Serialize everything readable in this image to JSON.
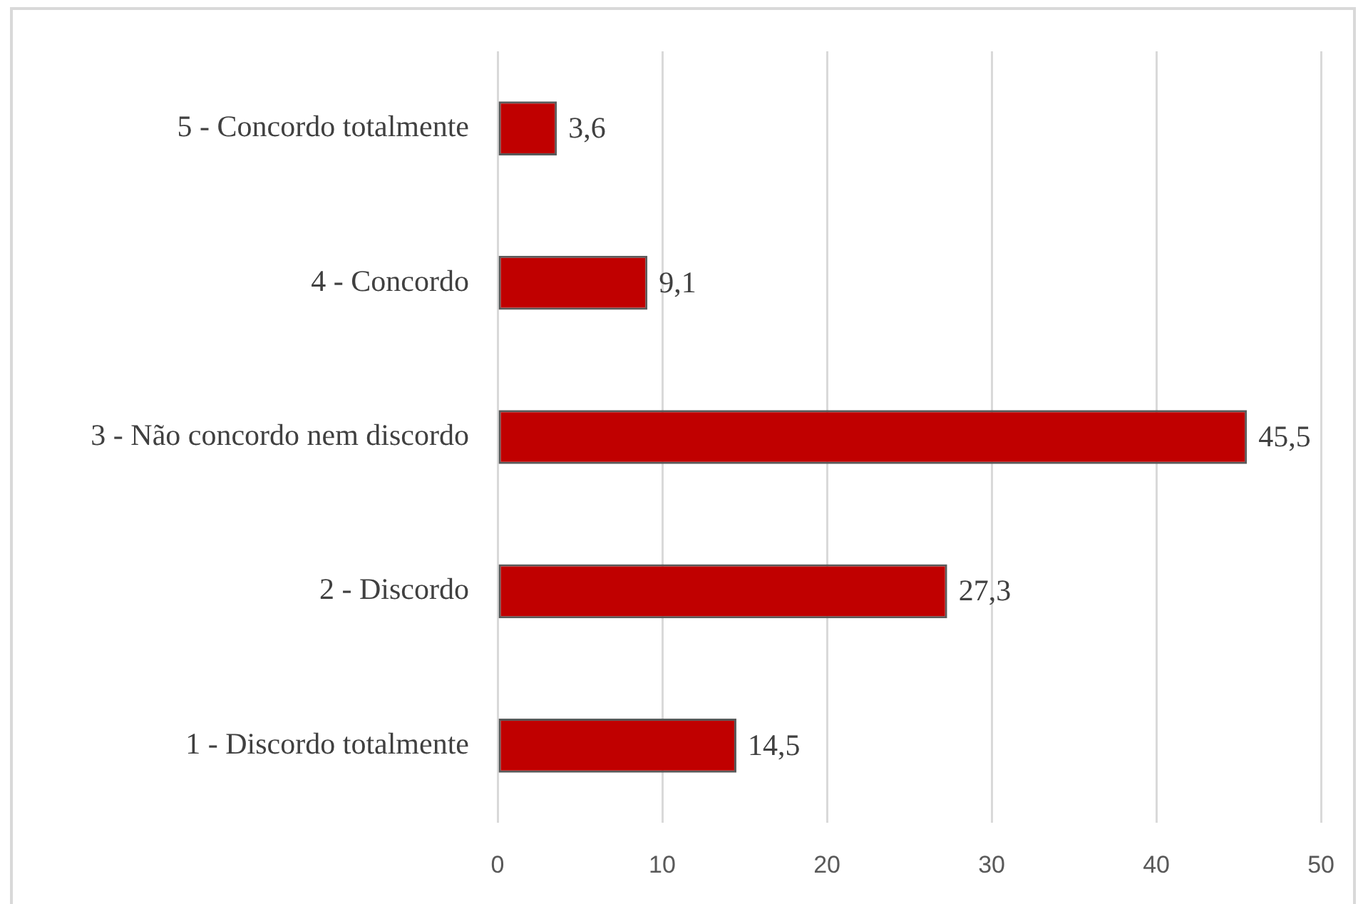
{
  "chart_data": {
    "type": "bar",
    "orientation": "horizontal",
    "categories": [
      "5 - Concordo totalmente",
      "4 - Concordo",
      "3 - Não concordo nem discordo",
      "2 - Discordo",
      "1 - Discordo totalmente"
    ],
    "values": [
      3.6,
      9.1,
      45.5,
      27.3,
      14.5
    ],
    "value_labels": [
      "3,6",
      "9,1",
      "45,5",
      "27,3",
      "14,5"
    ],
    "color": "#c00000",
    "xlim": [
      0,
      50
    ],
    "xticks": [
      0,
      10,
      20,
      30,
      40,
      50
    ],
    "grid": "x"
  }
}
